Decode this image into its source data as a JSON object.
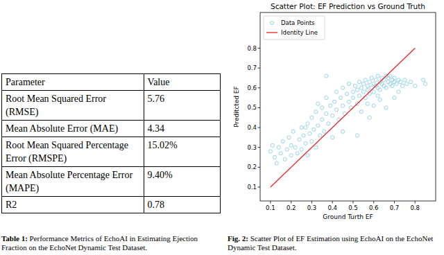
{
  "table": {
    "header": [
      "Parameter",
      "Value"
    ],
    "rows": [
      [
        "Root Mean Squared Error (RMSE)",
        "5.76"
      ],
      [
        "Mean Absolute Error (MAE)",
        "4.34"
      ],
      [
        "Root Mean Squared Percentage Error (RMSPE)",
        "15.02%"
      ],
      [
        "Mean Absolute Percentage Error (MAPE)",
        "9.40%"
      ],
      [
        "R2",
        "0.78"
      ]
    ]
  },
  "table_caption": {
    "label": "Table 1:",
    "text": "Performance Metrics of EchoAI in Estimating Ejection Fraction on the EchoNet Dynamic Test Dataset."
  },
  "figure_caption": {
    "label": "Fig. 2:",
    "text": "Scatter Plot of EF Estimation using EchoAI on the EchoNet Dynamic Test Dataset."
  },
  "chart_data": {
    "type": "scatter",
    "title": "Scatter Plot: EF Prediction vs Ground Truth",
    "x_label": "Ground Turth EF",
    "y_label": "Preditcted EF",
    "xlim": [
      0.05,
      0.9
    ],
    "ylim": [
      0.03,
      0.98
    ],
    "xticks": [
      0.1,
      0.2,
      0.3,
      0.4,
      0.5,
      0.6,
      0.7,
      0.8
    ],
    "yticks": [
      0.1,
      0.2,
      0.3,
      0.4,
      0.5,
      0.6,
      0.7,
      0.8
    ],
    "legend": "upper left",
    "series": [
      {
        "name": "Data Points",
        "type": "scatter",
        "marker": "circle",
        "color": "#7ec8dc",
        "x": [
          0.1,
          0.11,
          0.12,
          0.13,
          0.14,
          0.15,
          0.16,
          0.17,
          0.18,
          0.19,
          0.2,
          0.2,
          0.21,
          0.22,
          0.23,
          0.24,
          0.25,
          0.25,
          0.26,
          0.27,
          0.28,
          0.28,
          0.29,
          0.3,
          0.3,
          0.31,
          0.32,
          0.32,
          0.33,
          0.34,
          0.35,
          0.35,
          0.36,
          0.37,
          0.37,
          0.38,
          0.39,
          0.4,
          0.4,
          0.41,
          0.42,
          0.42,
          0.43,
          0.44,
          0.45,
          0.45,
          0.46,
          0.47,
          0.48,
          0.48,
          0.49,
          0.5,
          0.5,
          0.51,
          0.52,
          0.52,
          0.53,
          0.53,
          0.54,
          0.54,
          0.55,
          0.55,
          0.56,
          0.56,
          0.57,
          0.57,
          0.58,
          0.58,
          0.59,
          0.59,
          0.6,
          0.6,
          0.61,
          0.61,
          0.62,
          0.62,
          0.63,
          0.63,
          0.64,
          0.64,
          0.65,
          0.65,
          0.66,
          0.66,
          0.67,
          0.67,
          0.68,
          0.68,
          0.69,
          0.69,
          0.7,
          0.7,
          0.71,
          0.72,
          0.73,
          0.74,
          0.75,
          0.76,
          0.78,
          0.8,
          0.84,
          0.85,
          0.37,
          0.52,
          0.58,
          0.66,
          0.7,
          0.6,
          0.63,
          0.45,
          0.72,
          0.57,
          0.62,
          0.33,
          0.27
        ],
        "values": [
          0.28,
          0.31,
          0.25,
          0.22,
          0.3,
          0.27,
          0.33,
          0.24,
          0.29,
          0.35,
          0.26,
          0.31,
          0.38,
          0.3,
          0.27,
          0.34,
          0.4,
          0.29,
          0.36,
          0.32,
          0.42,
          0.26,
          0.37,
          0.45,
          0.33,
          0.39,
          0.3,
          0.48,
          0.41,
          0.36,
          0.5,
          0.44,
          0.38,
          0.47,
          0.55,
          0.42,
          0.51,
          0.46,
          0.35,
          0.53,
          0.49,
          0.58,
          0.44,
          0.55,
          0.51,
          0.6,
          0.47,
          0.57,
          0.53,
          0.62,
          0.5,
          0.58,
          0.55,
          0.61,
          0.52,
          0.59,
          0.63,
          0.56,
          0.6,
          0.48,
          0.62,
          0.58,
          0.64,
          0.55,
          0.61,
          0.59,
          0.63,
          0.57,
          0.65,
          0.6,
          0.62,
          0.58,
          0.64,
          0.61,
          0.6,
          0.66,
          0.63,
          0.59,
          0.65,
          0.62,
          0.61,
          0.64,
          0.66,
          0.6,
          0.63,
          0.65,
          0.62,
          0.66,
          0.64,
          0.61,
          0.63,
          0.65,
          0.62,
          0.64,
          0.63,
          0.61,
          0.64,
          0.62,
          0.63,
          0.61,
          0.64,
          0.62,
          0.66,
          0.36,
          0.45,
          0.5,
          0.55,
          0.51,
          0.54,
          0.38,
          0.58,
          0.52,
          0.56,
          0.52,
          0.4
        ]
      },
      {
        "name": "Identity Line",
        "type": "line",
        "line_style": "solid",
        "color": "#e8221e",
        "x": [
          0.1,
          0.8
        ],
        "values": [
          0.1,
          0.8
        ]
      }
    ]
  }
}
